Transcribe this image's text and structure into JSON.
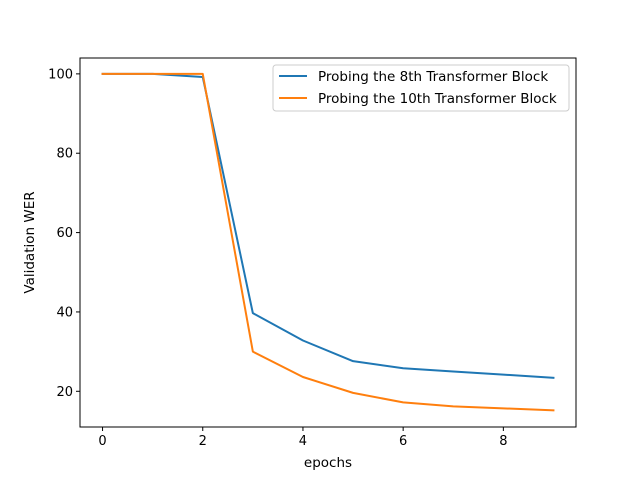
{
  "chart_data": {
    "type": "line",
    "title": "",
    "xlabel": "epochs",
    "ylabel": "Validation WER",
    "xlim": [
      -0.45,
      9.45
    ],
    "ylim": [
      11.0,
      104.0
    ],
    "xticks": [
      0,
      2,
      4,
      6,
      8
    ],
    "yticks": [
      20,
      40,
      60,
      80,
      100
    ],
    "grid": false,
    "legend_position": "top-right",
    "x": [
      0,
      1,
      2,
      3,
      4,
      5,
      6,
      7,
      8,
      9
    ],
    "series": [
      {
        "name": "Probing the 8th Transformer Block",
        "color": "#1f77b4",
        "values": [
          100.0,
          100.0,
          99.2,
          39.7,
          32.8,
          27.6,
          25.8,
          25.0,
          24.2,
          23.4
        ]
      },
      {
        "name": "Probing the 10th Transformer Block",
        "color": "#ff7f0e",
        "values": [
          100.0,
          100.0,
          100.0,
          30.0,
          23.6,
          19.6,
          17.2,
          16.2,
          15.7,
          15.2
        ]
      }
    ]
  }
}
